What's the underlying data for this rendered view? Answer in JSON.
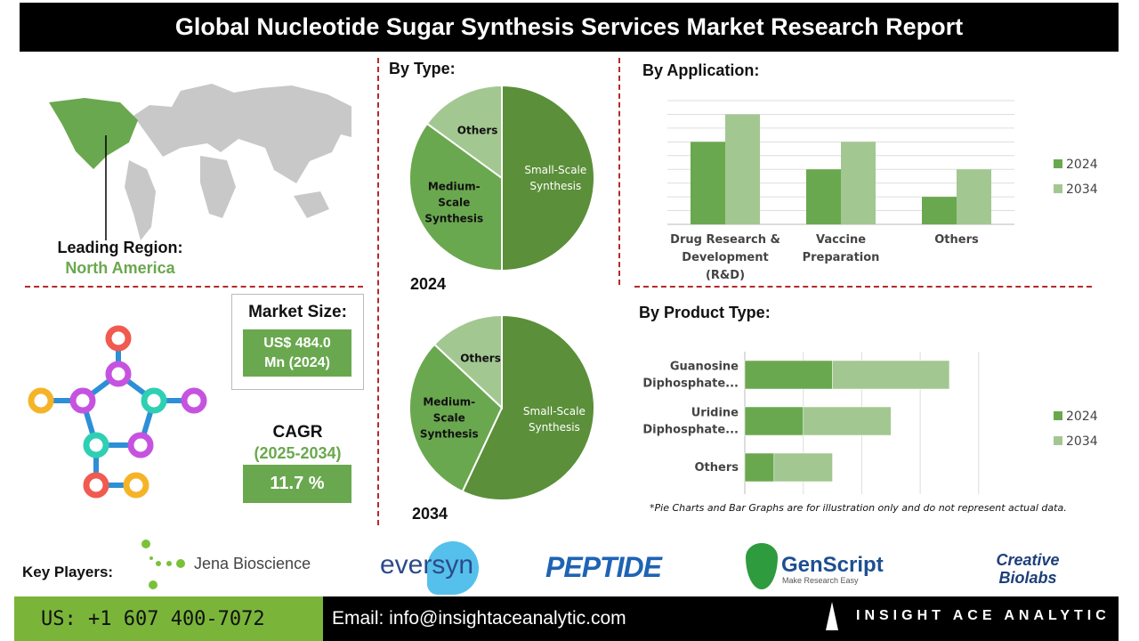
{
  "title": "Global Nucleotide Sugar Synthesis Services Market Research Report",
  "region": {
    "label": "Leading Region:",
    "value": "North America"
  },
  "market_size": {
    "label": "Market Size:",
    "value_line1": "US$ 484.0",
    "value_line2": "Mn (2024)"
  },
  "cagr": {
    "label": "CAGR",
    "period": "(2025-2034)",
    "value": "11.7 %"
  },
  "colors": {
    "dark_green": "#5b8f3a",
    "mid_green": "#6aa84f",
    "light_green": "#a3c791",
    "accent_red": "#b52a2a"
  },
  "chart_data": [
    {
      "type": "pie",
      "title": "By Type:",
      "year": "2024",
      "slices": [
        {
          "label": "Small-Scale Synthesis",
          "value": 50
        },
        {
          "label": "Medium-Scale Synthesis",
          "value": 35
        },
        {
          "label": "Others",
          "value": 15
        }
      ]
    },
    {
      "type": "pie",
      "year": "2034",
      "slices": [
        {
          "label": "Small-Scale Synthesis",
          "value": 57
        },
        {
          "label": "Medium-Scale Synthesis",
          "value": 30
        },
        {
          "label": "Others",
          "value": 13
        }
      ]
    },
    {
      "type": "bar",
      "title": "By Application:",
      "categories": [
        "Drug Research & Development (R&D)",
        "Vaccine Preparation",
        "Others"
      ],
      "series": [
        {
          "name": "2024",
          "values": [
            6,
            4,
            2
          ]
        },
        {
          "name": "2034",
          "values": [
            8,
            6,
            4
          ]
        }
      ],
      "ylim": [
        0,
        9
      ],
      "grid": true,
      "legend": "right"
    },
    {
      "type": "bar",
      "orientation": "horizontal-stacked",
      "title": "By Product Type:",
      "categories": [
        "Guanosine Diphosphate...",
        "Uridine Diphosphate...",
        "Others"
      ],
      "series": [
        {
          "name": "2024",
          "values": [
            1.5,
            1,
            0.5
          ]
        },
        {
          "name": "2034",
          "values": [
            2,
            1.5,
            1
          ]
        }
      ],
      "xlim": [
        0,
        4
      ],
      "grid": true,
      "legend": "right"
    }
  ],
  "note": "*Pie Charts and Bar Graphs are for illustration only and do not represent actual data.",
  "key_players": {
    "label": "Key Players:",
    "logos": [
      "Jena Bioscience",
      "eversyn",
      "PEPTIDE",
      "GenScript",
      "Make Research Easy",
      "Creative Biolabs"
    ]
  },
  "footer": {
    "phone": "US: +1 607 400-7072",
    "email": "Email: info@insightaceanalytic.com",
    "brand": "INSIGHT ACE ANALYTIC"
  }
}
